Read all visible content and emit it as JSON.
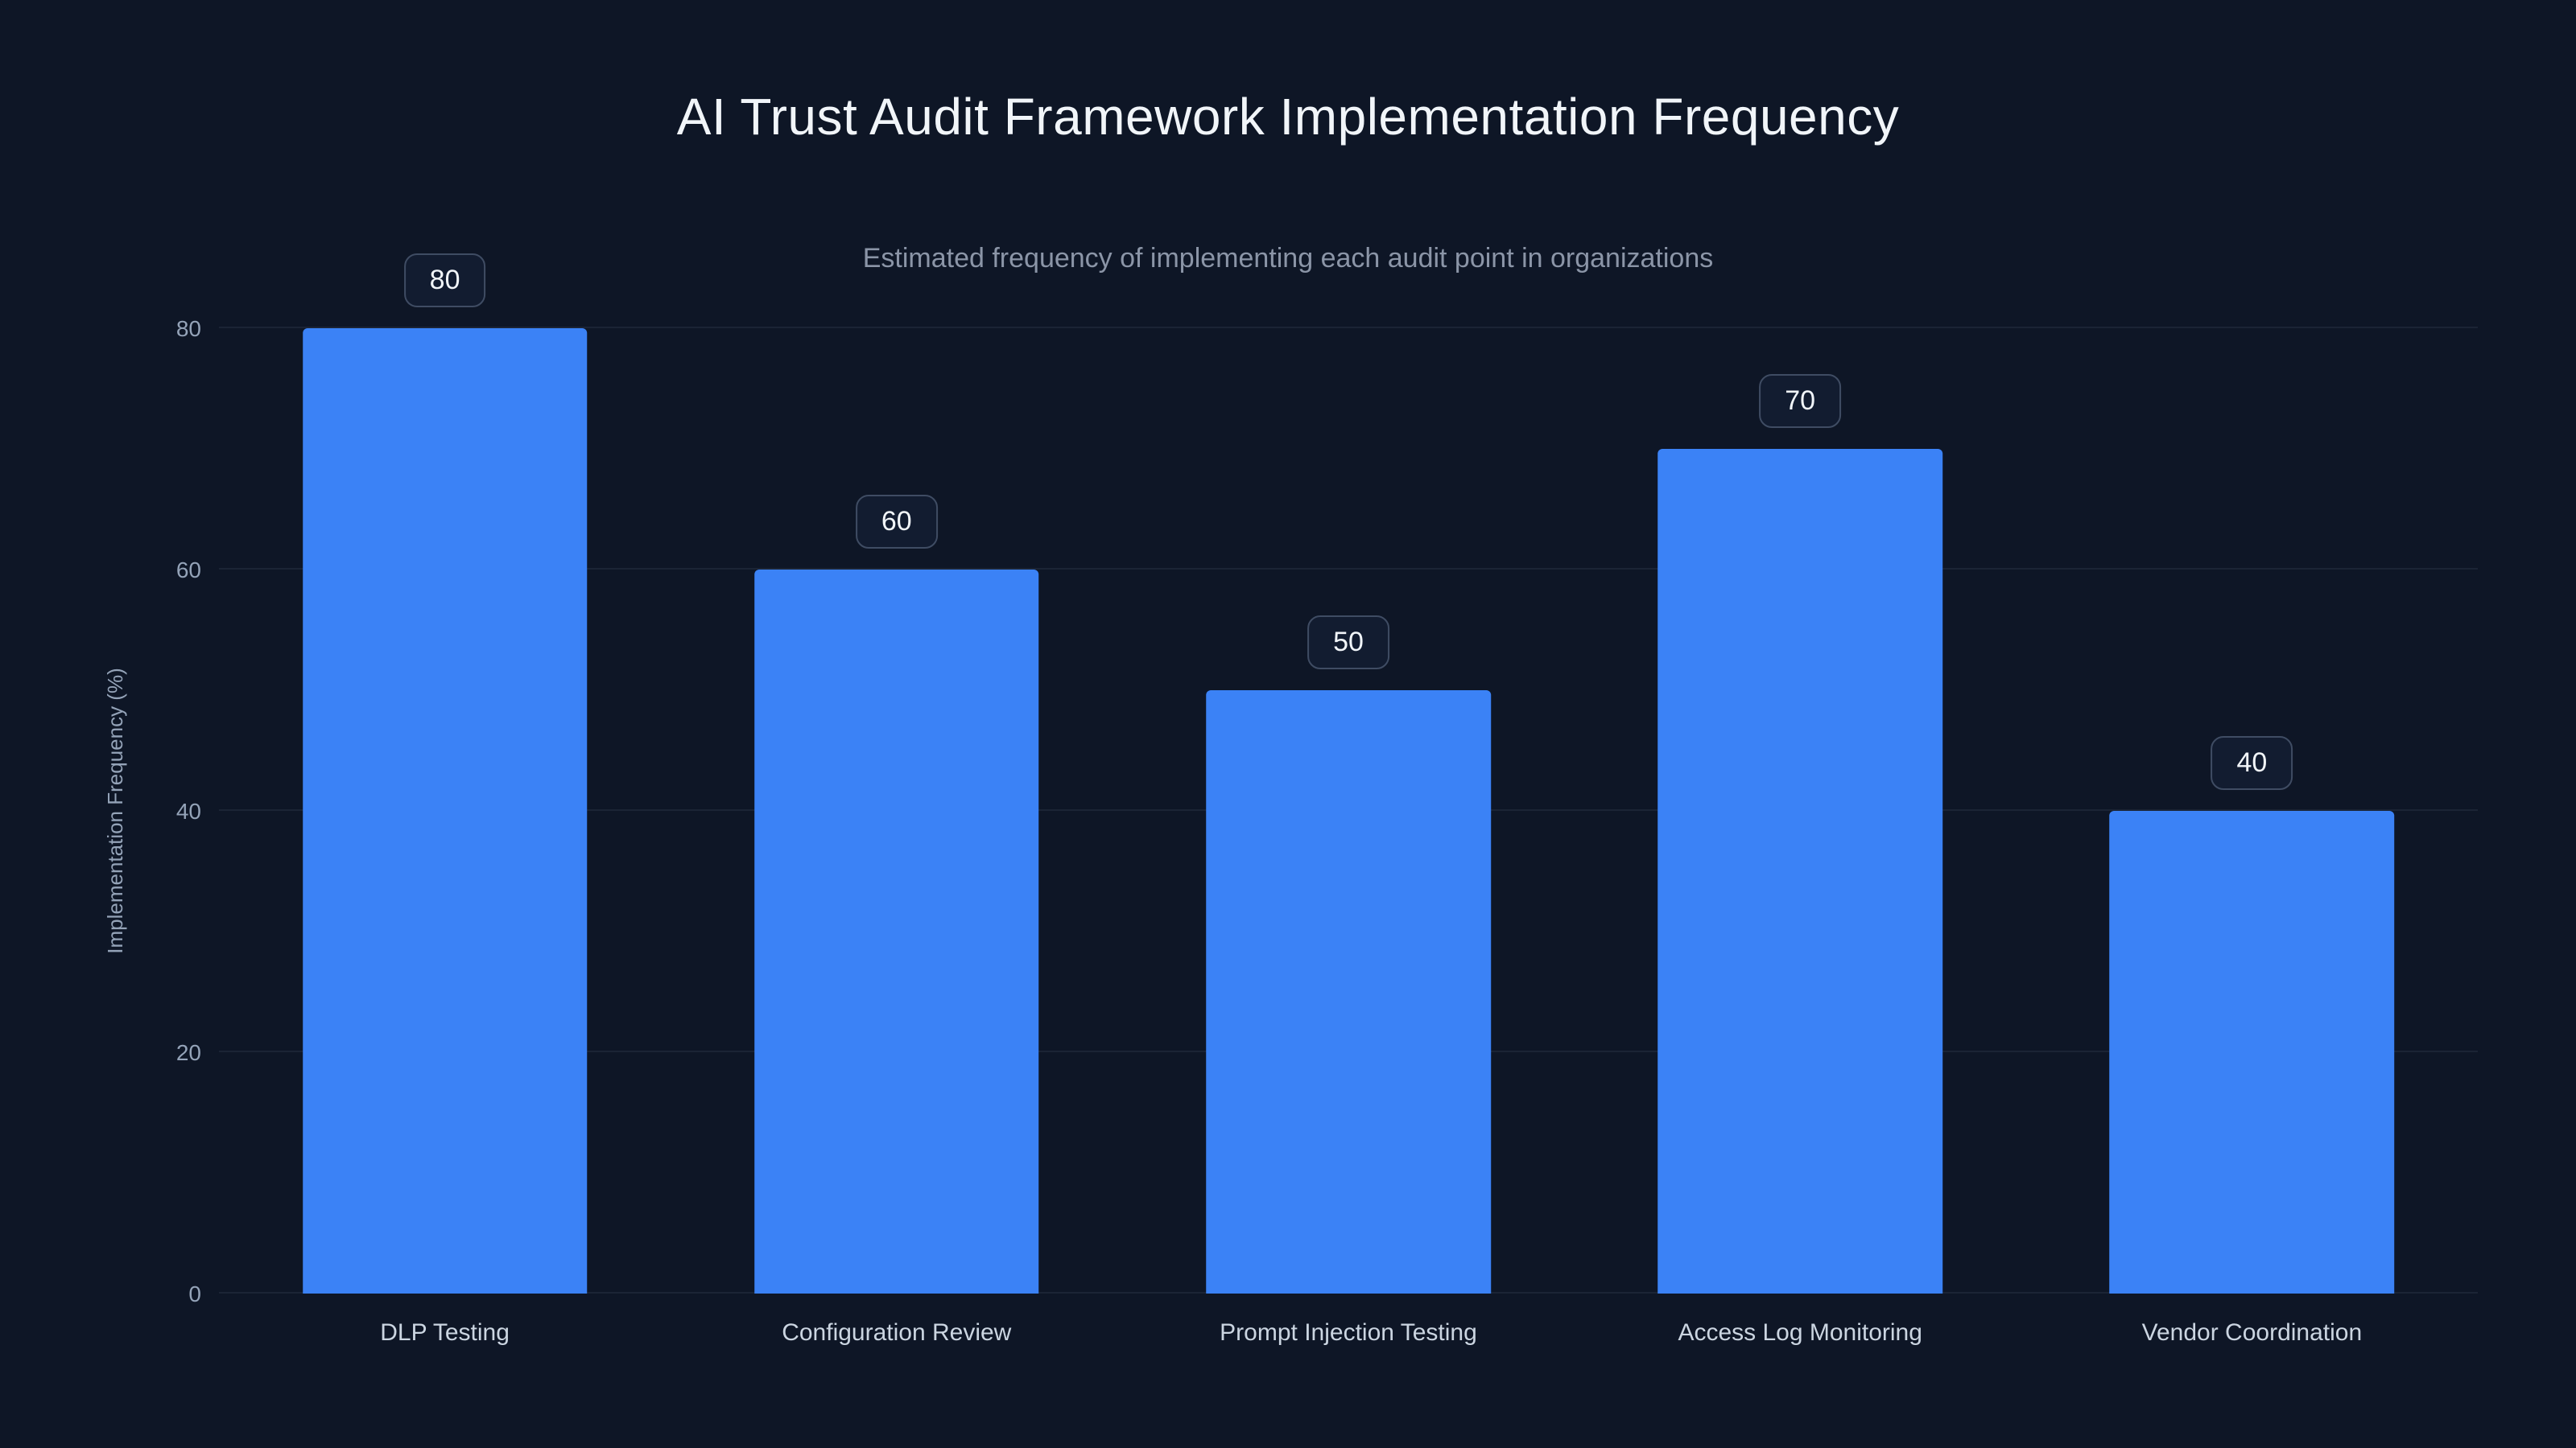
{
  "chart_data": {
    "type": "bar",
    "title": "AI Trust Audit Framework Implementation Frequency",
    "subtitle": "Estimated frequency of implementing each audit point in organizations",
    "categories": [
      "DLP Testing",
      "Configuration Review",
      "Prompt Injection Testing",
      "Access Log Monitoring",
      "Vendor Coordination"
    ],
    "values": [
      80,
      60,
      50,
      70,
      40
    ],
    "xlabel": "",
    "ylabel": "Implementation Frequency (%)",
    "ylim": [
      0,
      80
    ],
    "yticks": [
      0,
      20,
      40,
      60,
      80
    ],
    "grid": true,
    "legend": false,
    "colors": {
      "bar": "#3b82f6",
      "background": "#0e1626",
      "title_text": "#f1f5f9",
      "muted_text": "#94a3b8",
      "grid": "rgba(148,163,184,0.10)",
      "badge_border": "#3f4c63",
      "badge_bg": "#121c30"
    }
  }
}
